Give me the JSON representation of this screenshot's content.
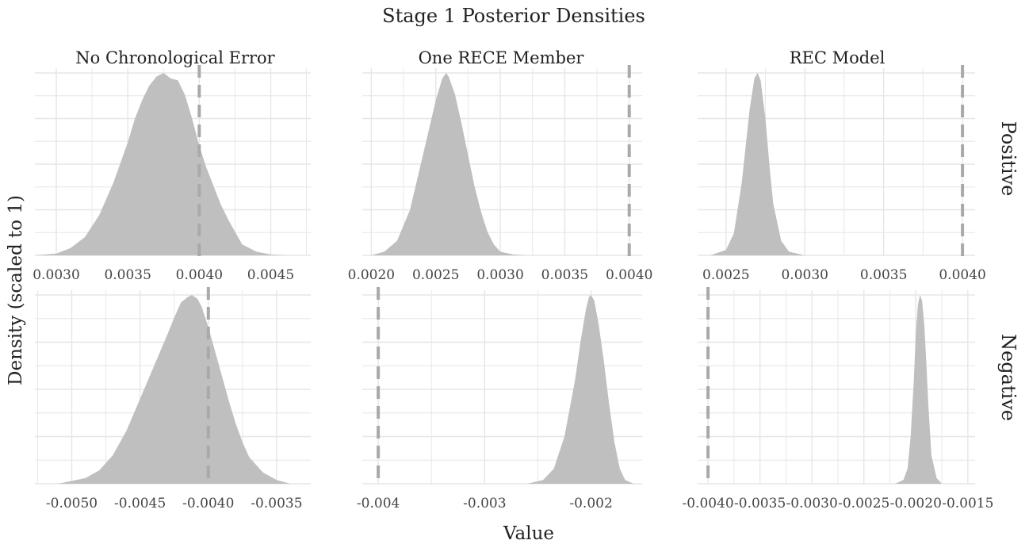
{
  "chart_data": {
    "type": "area",
    "title": "Stage 1 Posterior Densities",
    "xlabel": "Value",
    "ylabel": "Density (scaled to 1)",
    "column_strips": [
      "No Chronological Error",
      "One RECE Member",
      "REC Model"
    ],
    "row_strips": [
      "Positive",
      "Negative"
    ],
    "grid": true,
    "fill_color": "#bfbfbf",
    "reference_line_color": "#a9a9a9",
    "grid_color": "#e6e6e6",
    "panels": [
      {
        "row": 0,
        "col": 0,
        "xlim": [
          0.00285,
          0.00478
        ],
        "ticks": [
          0.003,
          0.0035,
          0.004,
          0.0045
        ],
        "tick_labels": [
          "0.0030",
          "0.0035",
          "0.0040",
          "0.0045"
        ],
        "reference_line": 0.004,
        "x": [
          0.00285,
          0.003,
          0.0031,
          0.0032,
          0.0033,
          0.0034,
          0.0035,
          0.00355,
          0.0036,
          0.00365,
          0.0037,
          0.00375,
          0.0038,
          0.00385,
          0.0039,
          0.00395,
          0.004,
          0.00405,
          0.0041,
          0.00415,
          0.0042,
          0.00425,
          0.0043,
          0.0044,
          0.0045,
          0.0046
        ],
        "density": [
          0.0,
          0.01,
          0.04,
          0.1,
          0.22,
          0.4,
          0.62,
          0.75,
          0.85,
          0.93,
          0.98,
          1.0,
          0.97,
          0.96,
          0.88,
          0.75,
          0.6,
          0.48,
          0.38,
          0.28,
          0.2,
          0.13,
          0.06,
          0.02,
          0.005,
          0.0
        ]
      },
      {
        "row": 0,
        "col": 1,
        "xlim": [
          0.00193,
          0.0041
        ],
        "ticks": [
          0.002,
          0.0025,
          0.003,
          0.0035,
          0.004
        ],
        "tick_labels": [
          "0.0020",
          "0.0025",
          "0.0030",
          "0.0035",
          "0.0040"
        ],
        "reference_line": 0.004,
        "x": [
          0.002,
          0.0021,
          0.0022,
          0.0023,
          0.0024,
          0.0025,
          0.00255,
          0.00258,
          0.0026,
          0.00265,
          0.0027,
          0.00275,
          0.0028,
          0.00285,
          0.0029,
          0.00295,
          0.003,
          0.0031,
          0.0032
        ],
        "density": [
          0.0,
          0.02,
          0.08,
          0.25,
          0.55,
          0.85,
          0.97,
          1.0,
          0.98,
          0.88,
          0.72,
          0.55,
          0.38,
          0.24,
          0.13,
          0.06,
          0.02,
          0.005,
          0.0
        ]
      },
      {
        "row": 0,
        "col": 2,
        "xlim": [
          0.00232,
          0.00408
        ],
        "ticks": [
          0.0025,
          0.003,
          0.0035,
          0.004
        ],
        "tick_labels": [
          "0.0025",
          "0.0030",
          "0.0035",
          "0.0040"
        ],
        "reference_line": 0.004,
        "x": [
          0.0024,
          0.0025,
          0.00255,
          0.0026,
          0.00265,
          0.00268,
          0.0027,
          0.00272,
          0.00275,
          0.00278,
          0.0028,
          0.00285,
          0.0029,
          0.003
        ],
        "density": [
          0.0,
          0.03,
          0.12,
          0.4,
          0.8,
          0.97,
          1.0,
          0.96,
          0.75,
          0.45,
          0.28,
          0.08,
          0.02,
          0.0
        ]
      },
      {
        "row": 1,
        "col": 0,
        "xlim": [
          -0.00527,
          -0.00325
        ],
        "ticks": [
          -0.005,
          -0.0045,
          -0.004,
          -0.0035
        ],
        "tick_labels": [
          "-0.0050",
          "-0.0045",
          "-0.0040",
          "-0.0035"
        ],
        "reference_line": -0.004,
        "x": [
          -0.0051,
          -0.0049,
          -0.0048,
          -0.0047,
          -0.0046,
          -0.0045,
          -0.0044,
          -0.0043,
          -0.00425,
          -0.0042,
          -0.00415,
          -0.00412,
          -0.00408,
          -0.00405,
          -0.004,
          -0.00395,
          -0.0039,
          -0.00385,
          -0.0038,
          -0.00375,
          -0.0037,
          -0.0036,
          -0.0035,
          -0.0034
        ],
        "density": [
          0.0,
          0.03,
          0.07,
          0.15,
          0.28,
          0.45,
          0.62,
          0.79,
          0.88,
          0.96,
          0.99,
          1.0,
          0.98,
          0.94,
          0.83,
          0.7,
          0.57,
          0.44,
          0.32,
          0.22,
          0.14,
          0.06,
          0.02,
          0.0
        ]
      },
      {
        "row": 1,
        "col": 2,
        "xlim": [
          -0.0041,
          -0.00143
        ],
        "ticks": [
          -0.004,
          -0.0035,
          -0.003,
          -0.0025,
          -0.002,
          -0.0015
        ],
        "tick_labels": [
          "-0.0040",
          "-0.0035",
          "-0.0030",
          "-0.0025",
          "-0.0020",
          "-0.0015"
        ],
        "reference_line": -0.004,
        "x": [
          -0.0022,
          -0.00212,
          -0.00208,
          -0.00205,
          -0.00202,
          -0.002,
          -0.00198,
          -0.00196,
          -0.00194,
          -0.00192,
          -0.0019,
          -0.00188,
          -0.00185,
          -0.0018,
          -0.00175
        ],
        "density": [
          0.0,
          0.02,
          0.08,
          0.25,
          0.55,
          0.8,
          0.95,
          1.0,
          0.97,
          0.85,
          0.65,
          0.42,
          0.15,
          0.03,
          0.0
        ]
      },
      {
        "row": 1,
        "col": 1,
        "xlim": [
          -0.00415,
          -0.00152
        ],
        "ticks": [
          -0.004,
          -0.003,
          -0.002
        ],
        "tick_labels": [
          "-0.004",
          "-0.003",
          "-0.002"
        ],
        "reference_line": -0.004,
        "x": [
          -0.0026,
          -0.00245,
          -0.00235,
          -0.00225,
          -0.00215,
          -0.0021,
          -0.00205,
          -0.00202,
          -0.002,
          -0.00197,
          -0.00193,
          -0.00188,
          -0.00183,
          -0.00178,
          -0.00173,
          -0.00168,
          -0.0016
        ],
        "density": [
          0.0,
          0.02,
          0.08,
          0.25,
          0.55,
          0.75,
          0.92,
          0.99,
          1.0,
          0.97,
          0.85,
          0.65,
          0.42,
          0.22,
          0.08,
          0.02,
          0.0
        ]
      }
    ]
  }
}
